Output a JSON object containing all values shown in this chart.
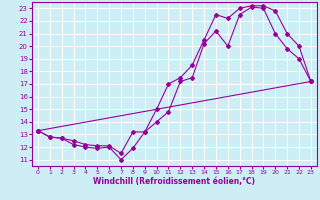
{
  "xlabel": "Windchill (Refroidissement éolien,°C)",
  "bg_color": "#cdeef5",
  "grid_color": "#ffffff",
  "line_color": "#990099",
  "xlim": [
    -0.5,
    23.5
  ],
  "ylim": [
    10.5,
    23.5
  ],
  "xticks": [
    0,
    1,
    2,
    3,
    4,
    5,
    6,
    7,
    8,
    9,
    10,
    11,
    12,
    13,
    14,
    15,
    16,
    17,
    18,
    19,
    20,
    21,
    22,
    23
  ],
  "yticks": [
    11,
    12,
    13,
    14,
    15,
    16,
    17,
    18,
    19,
    20,
    21,
    22,
    23
  ],
  "line1_x": [
    0,
    1,
    2,
    3,
    4,
    5,
    6,
    7,
    8,
    9,
    10,
    11,
    12,
    13,
    14,
    15,
    16,
    17,
    18,
    19,
    20,
    21,
    22,
    23
  ],
  "line1_y": [
    13.3,
    12.8,
    12.7,
    12.2,
    12.0,
    11.9,
    12.0,
    11.0,
    11.9,
    13.2,
    15.0,
    17.0,
    17.5,
    18.5,
    20.5,
    22.5,
    22.2,
    23.0,
    23.2,
    23.2,
    22.8,
    21.0,
    20.0,
    17.2
  ],
  "line2_x": [
    0,
    1,
    2,
    3,
    4,
    5,
    6,
    7,
    8,
    9,
    10,
    11,
    12,
    13,
    14,
    15,
    16,
    17,
    18,
    19,
    20,
    21,
    22,
    23
  ],
  "line2_y": [
    13.3,
    12.8,
    12.7,
    12.5,
    12.2,
    12.1,
    12.1,
    11.5,
    13.2,
    13.2,
    14.0,
    14.8,
    17.2,
    17.5,
    20.2,
    21.2,
    20.0,
    22.5,
    23.1,
    23.0,
    21.0,
    19.8,
    19.0,
    17.2
  ],
  "line3_x": [
    0,
    23
  ],
  "line3_y": [
    13.3,
    17.2
  ]
}
